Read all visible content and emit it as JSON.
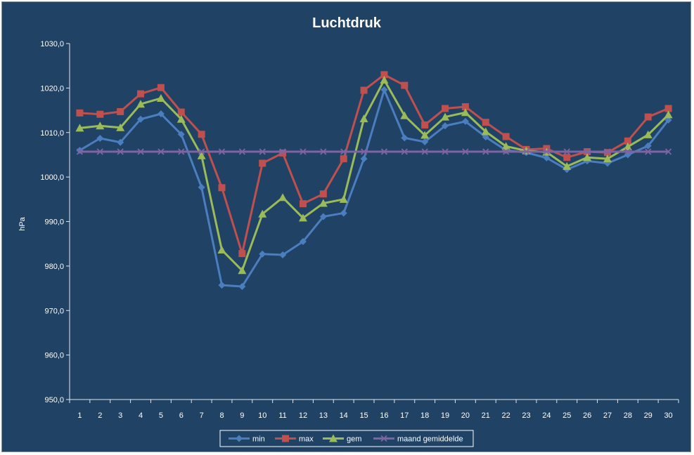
{
  "chart_data": {
    "type": "line",
    "title": "Luchtdruk",
    "ylabel": "hPa",
    "xlabel": "",
    "ylim": [
      950,
      1030
    ],
    "yticks": [
      950,
      960,
      970,
      980,
      990,
      1000,
      1010,
      1020,
      1030
    ],
    "ytick_labels": [
      "950,0",
      "960,0",
      "970,0",
      "980,0",
      "990,0",
      "1000,0",
      "1010,0",
      "1020,0",
      "1030,0"
    ],
    "categories": [
      "1",
      "2",
      "3",
      "4",
      "5",
      "6",
      "7",
      "8",
      "9",
      "10",
      "11",
      "12",
      "13",
      "14",
      "15",
      "16",
      "17",
      "18",
      "19",
      "20",
      "21",
      "22",
      "23",
      "24",
      "25",
      "26",
      "27",
      "28",
      "29",
      "30"
    ],
    "grid": false,
    "legend_position": "bottom",
    "series": [
      {
        "name": "min",
        "color": "#4a7ebf",
        "marker": "diamond",
        "values": [
          1006.0,
          1008.7,
          1007.8,
          1013.0,
          1014.2,
          1009.6,
          997.7,
          975.7,
          975.4,
          982.7,
          982.5,
          985.5,
          991.1,
          991.9,
          1004.1,
          1019.6,
          1008.8,
          1007.9,
          1011.5,
          1012.5,
          1009.0,
          1006.0,
          1005.5,
          1004.3,
          1001.7,
          1003.6,
          1003.1,
          1005.0,
          1007.0,
          1012.8
        ]
      },
      {
        "name": "max",
        "color": "#c0504d",
        "marker": "square",
        "values": [
          1014.4,
          1014.1,
          1014.7,
          1018.7,
          1020.1,
          1014.6,
          1009.6,
          997.6,
          982.8,
          1003.1,
          1005.4,
          994.0,
          996.2,
          1004.1,
          1019.5,
          1023.0,
          1020.6,
          1011.7,
          1015.4,
          1015.8,
          1012.3,
          1009.1,
          1006.2,
          1006.4,
          1004.4,
          1005.7,
          1005.5,
          1008.1,
          1013.5,
          1015.4
        ]
      },
      {
        "name": "gem",
        "color": "#9bbb59",
        "marker": "triangle",
        "values": [
          1011.0,
          1011.5,
          1011.1,
          1016.4,
          1017.7,
          1013.0,
          1004.8,
          983.6,
          979.0,
          991.7,
          995.4,
          990.8,
          994.1,
          995.0,
          1013.1,
          1021.8,
          1013.8,
          1009.4,
          1013.5,
          1014.5,
          1010.2,
          1006.9,
          1005.9,
          1005.6,
          1002.4,
          1004.4,
          1004.1,
          1006.8,
          1009.5,
          1014.0
        ]
      },
      {
        "name": "maand gemiddelde",
        "color": "#8064a2",
        "marker": "x",
        "values": [
          1005.7,
          1005.7,
          1005.7,
          1005.7,
          1005.7,
          1005.7,
          1005.7,
          1005.7,
          1005.7,
          1005.7,
          1005.7,
          1005.7,
          1005.7,
          1005.7,
          1005.7,
          1005.7,
          1005.7,
          1005.7,
          1005.7,
          1005.7,
          1005.7,
          1005.7,
          1005.7,
          1005.7,
          1005.7,
          1005.7,
          1005.7,
          1005.7,
          1005.7,
          1005.7
        ]
      }
    ]
  }
}
